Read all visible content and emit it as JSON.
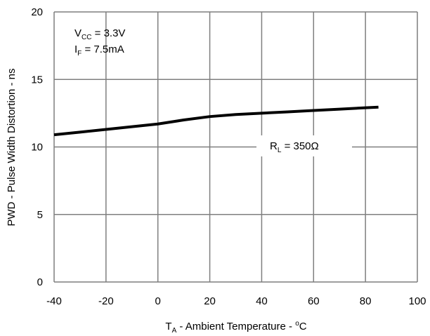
{
  "chart_data": {
    "type": "line",
    "title": "",
    "xlabel": {
      "prefix": "T",
      "sub": "A",
      "main": " - Ambient Temperature - ",
      "sup": "o",
      "tail": "C"
    },
    "ylabel": "PWD - Pulse Width Distortion - ns",
    "xlim": [
      -40,
      100
    ],
    "ylim": [
      0,
      20
    ],
    "x_ticks": [
      "-40",
      "-20",
      "0",
      "20",
      "40",
      "60",
      "80",
      "100"
    ],
    "y_ticks": [
      "0",
      "5",
      "10",
      "15",
      "20"
    ],
    "grid": true,
    "series": [
      {
        "x": [
          -40,
          -30,
          -20,
          -10,
          0,
          10,
          20,
          30,
          40,
          50,
          60,
          70,
          80,
          85
        ],
        "values": [
          10.9,
          11.1,
          11.3,
          11.5,
          11.7,
          12.0,
          12.25,
          12.4,
          12.5,
          12.6,
          12.7,
          12.8,
          12.9,
          12.95
        ],
        "color": "#000000"
      }
    ],
    "annotations": {
      "conditions": [
        {
          "main": "V",
          "sub": "CC",
          "rest": " = 3.3V"
        },
        {
          "main": "I",
          "sub": "F",
          "rest": " = 7.5mA"
        }
      ],
      "series_label": {
        "main": "R",
        "sub": "L",
        "rest": " = 350Ω"
      }
    }
  }
}
